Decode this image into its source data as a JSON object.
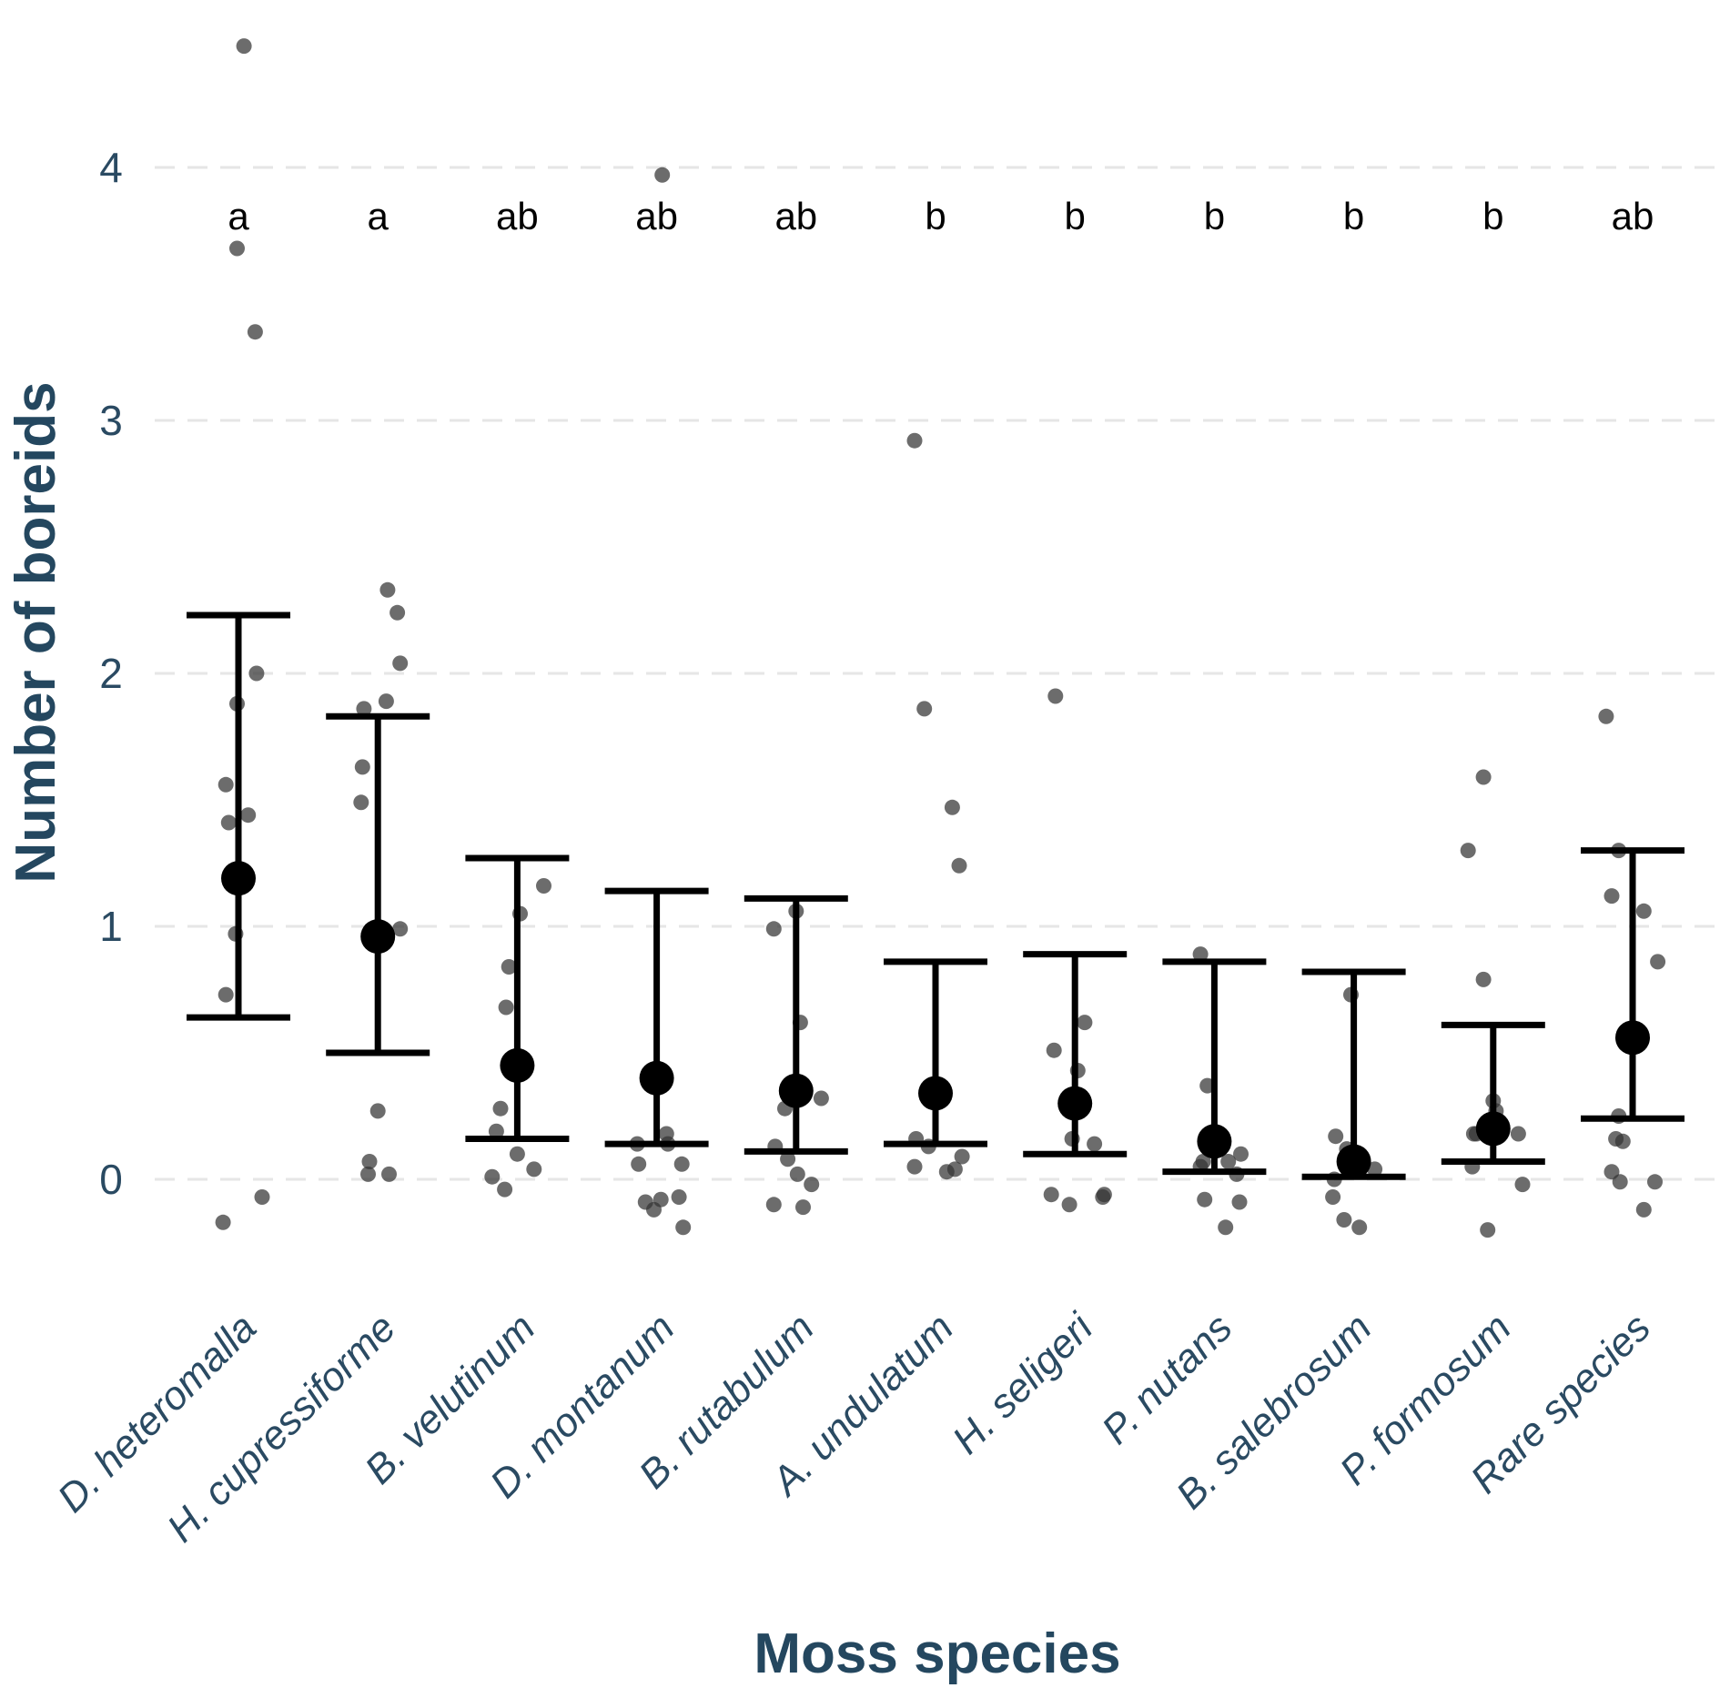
{
  "chart_data": {
    "type": "scatter",
    "subtype": "dot-plot with mean and error bars",
    "title": "",
    "xlabel": "Moss species",
    "ylabel": "Number of boreids",
    "ylim": [
      -0.3,
      4.5
    ],
    "yticks": [
      0,
      1,
      2,
      3,
      4
    ],
    "grid": true,
    "legend": "none",
    "categories": [
      "D. heteromalla",
      "H. cupressiforme",
      "B. velutinum",
      "D. montanum",
      "B. rutabulum",
      "A. undulatum",
      "H. seligeri",
      "P. nutans",
      "B. salebrosum",
      "P. formosum",
      "Rare species"
    ],
    "letters": [
      "a",
      "a",
      "ab",
      "ab",
      "ab",
      "b",
      "b",
      "b",
      "b",
      "b",
      "ab"
    ],
    "means": [
      1.19,
      0.96,
      0.45,
      0.4,
      0.35,
      0.34,
      0.3,
      0.15,
      0.07,
      0.2,
      0.56
    ],
    "upper": [
      2.23,
      1.83,
      1.27,
      1.14,
      1.11,
      0.86,
      0.89,
      0.86,
      0.82,
      0.61,
      1.3
    ],
    "lower": [
      0.64,
      0.5,
      0.16,
      0.14,
      0.11,
      0.14,
      0.1,
      0.03,
      0.01,
      0.07,
      0.24
    ],
    "observations": [
      [
        [
          0.04,
          4.48
        ],
        [
          -0.01,
          3.68
        ],
        [
          0.12,
          3.35
        ],
        [
          0.13,
          2.0
        ],
        [
          -0.01,
          1.88
        ],
        [
          -0.09,
          1.56
        ],
        [
          -0.07,
          1.41
        ],
        [
          0.07,
          1.44
        ],
        [
          -0.02,
          0.97
        ],
        [
          -0.09,
          0.73
        ],
        [
          -0.11,
          -0.17
        ],
        [
          0.17,
          -0.07
        ]
      ],
      [
        [
          0.07,
          2.33
        ],
        [
          0.14,
          2.24
        ],
        [
          0.16,
          2.04
        ],
        [
          0.06,
          1.89
        ],
        [
          -0.1,
          1.86
        ],
        [
          -0.11,
          1.63
        ],
        [
          -0.12,
          1.49
        ],
        [
          0.16,
          0.99
        ],
        [
          0.0,
          0.27
        ],
        [
          -0.06,
          0.07
        ],
        [
          -0.07,
          0.02
        ],
        [
          0.08,
          0.02
        ]
      ],
      [
        [
          0.19,
          1.16
        ],
        [
          0.02,
          1.05
        ],
        [
          -0.06,
          0.84
        ],
        [
          -0.08,
          0.68
        ],
        [
          -0.12,
          0.28
        ],
        [
          -0.15,
          0.19
        ],
        [
          0.0,
          0.1
        ],
        [
          0.12,
          0.04
        ],
        [
          -0.18,
          0.01
        ],
        [
          -0.09,
          -0.04
        ]
      ],
      [
        [
          0.04,
          3.97
        ],
        [
          -0.14,
          0.14
        ],
        [
          0.07,
          0.18
        ],
        [
          0.08,
          0.14
        ],
        [
          -0.13,
          0.06
        ],
        [
          0.18,
          0.06
        ],
        [
          -0.08,
          -0.09
        ],
        [
          0.03,
          -0.08
        ],
        [
          -0.02,
          -0.12
        ],
        [
          0.16,
          -0.07
        ],
        [
          0.19,
          -0.19
        ]
      ],
      [
        [
          -0.16,
          0.99
        ],
        [
          0.0,
          1.06
        ],
        [
          0.03,
          0.62
        ],
        [
          0.18,
          0.32
        ],
        [
          -0.08,
          0.28
        ],
        [
          -0.15,
          0.13
        ],
        [
          -0.06,
          0.08
        ],
        [
          0.01,
          0.02
        ],
        [
          0.11,
          -0.02
        ],
        [
          -0.16,
          -0.1
        ],
        [
          0.05,
          -0.11
        ]
      ],
      [
        [
          -0.15,
          2.92
        ],
        [
          -0.08,
          1.86
        ],
        [
          0.12,
          1.47
        ],
        [
          0.17,
          1.24
        ],
        [
          -0.14,
          0.16
        ],
        [
          -0.05,
          0.13
        ],
        [
          0.19,
          0.09
        ],
        [
          0.14,
          0.04
        ],
        [
          -0.15,
          0.05
        ],
        [
          0.08,
          0.03
        ]
      ],
      [
        [
          -0.14,
          1.91
        ],
        [
          -0.15,
          0.51
        ],
        [
          0.07,
          0.62
        ],
        [
          0.02,
          0.43
        ],
        [
          -0.02,
          0.16
        ],
        [
          0.14,
          0.14
        ],
        [
          -0.17,
          -0.06
        ],
        [
          0.21,
          -0.06
        ],
        [
          -0.04,
          -0.1
        ],
        [
          0.2,
          -0.07
        ]
      ],
      [
        [
          -0.1,
          0.89
        ],
        [
          -0.05,
          0.37
        ],
        [
          0.19,
          0.1
        ],
        [
          -0.08,
          0.07
        ],
        [
          0.1,
          0.07
        ],
        [
          -0.1,
          0.05
        ],
        [
          0.16,
          0.02
        ],
        [
          -0.07,
          -0.08
        ],
        [
          0.18,
          -0.09
        ],
        [
          0.08,
          -0.19
        ]
      ],
      [
        [
          -0.02,
          0.73
        ],
        [
          -0.13,
          0.17
        ],
        [
          -0.05,
          0.12
        ],
        [
          0.15,
          0.04
        ],
        [
          -0.14,
          0.0
        ],
        [
          -0.15,
          -0.07
        ],
        [
          -0.07,
          -0.16
        ],
        [
          0.04,
          -0.19
        ]
      ],
      [
        [
          -0.07,
          1.59
        ],
        [
          -0.18,
          1.3
        ],
        [
          -0.07,
          0.79
        ],
        [
          0.0,
          0.31
        ],
        [
          0.02,
          0.27
        ],
        [
          -0.12,
          0.18
        ],
        [
          -0.14,
          0.18
        ],
        [
          0.18,
          0.18
        ],
        [
          -0.15,
          0.05
        ],
        [
          0.21,
          -0.02
        ],
        [
          -0.04,
          -0.2
        ]
      ],
      [
        [
          -0.19,
          1.83
        ],
        [
          -0.1,
          1.3
        ],
        [
          -0.15,
          1.12
        ],
        [
          0.08,
          1.06
        ],
        [
          0.18,
          0.86
        ],
        [
          -0.1,
          0.25
        ],
        [
          -0.12,
          0.16
        ],
        [
          -0.07,
          0.15
        ],
        [
          -0.15,
          0.03
        ],
        [
          -0.09,
          -0.01
        ],
        [
          0.16,
          -0.01
        ],
        [
          0.08,
          -0.12
        ]
      ]
    ]
  }
}
